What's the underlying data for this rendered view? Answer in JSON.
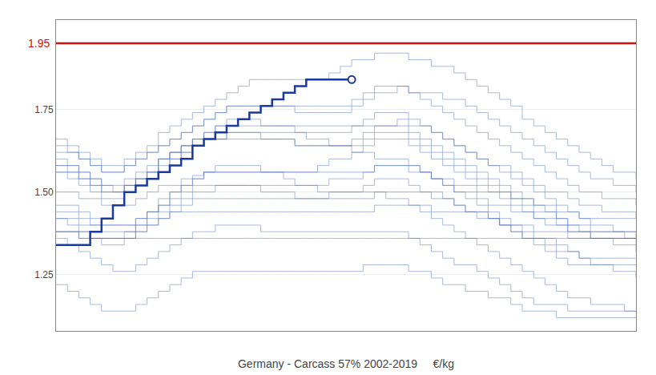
{
  "chart_data": {
    "type": "line",
    "title": "Germany - Carcass 57% 2002-2019     €/kg",
    "line_style": "step",
    "grid": true,
    "tick_labels": "y",
    "x": [
      0,
      1,
      2,
      3,
      4,
      5,
      6,
      7,
      8,
      9,
      10,
      11,
      12,
      13,
      14,
      15,
      16,
      17,
      18,
      19,
      20,
      21,
      22,
      23,
      24,
      25,
      26,
      27,
      28,
      29,
      30,
      31,
      32,
      33,
      34,
      35,
      36,
      37,
      38,
      39,
      40,
      41,
      42,
      43,
      44,
      45,
      46,
      47,
      48,
      49,
      50,
      51
    ],
    "xlim": [
      0,
      51
    ],
    "ylim": [
      1.08,
      2.02
    ],
    "yticks": [
      1.25,
      {
        "value": 1.5,
        "label": "1.50"
      },
      1.75
    ],
    "reference_line": {
      "value": 1.95,
      "label": "1.95",
      "color": "#cc1111"
    },
    "series": [
      {
        "color": "#4466bb",
        "values": [
          1.38,
          1.38,
          1.36,
          1.36,
          1.36,
          1.36,
          1.38,
          1.38,
          1.4,
          1.42,
          1.44,
          1.44,
          1.44,
          1.44,
          1.44,
          1.44,
          1.44,
          1.44,
          1.44,
          1.44,
          1.44,
          1.44,
          1.44,
          1.44,
          1.44,
          1.44,
          1.44,
          1.44,
          1.46,
          1.46,
          1.46,
          1.46,
          1.46,
          1.44,
          1.44,
          1.44,
          1.44,
          1.42,
          1.42,
          1.4,
          1.4,
          1.4,
          1.38,
          1.38,
          1.38,
          1.36,
          1.36,
          1.36,
          1.36,
          1.36,
          1.36,
          1.36
        ]
      },
      {
        "color": "#4466bb",
        "values": [
          1.38,
          1.38,
          1.36,
          1.36,
          1.36,
          1.36,
          1.36,
          1.36,
          1.36,
          1.36,
          1.36,
          1.36,
          1.36,
          1.36,
          1.36,
          1.36,
          1.36,
          1.36,
          1.36,
          1.36,
          1.36,
          1.36,
          1.36,
          1.36,
          1.36,
          1.36,
          1.36,
          1.36,
          1.36,
          1.36,
          1.36,
          1.36,
          1.36,
          1.36,
          1.36,
          1.36,
          1.36,
          1.36,
          1.36,
          1.36,
          1.36,
          1.36,
          1.36,
          1.36,
          1.36,
          1.36,
          1.36,
          1.36,
          1.36,
          1.36,
          1.36,
          1.36
        ]
      },
      {
        "color": "#4466bb",
        "values": [
          1.5,
          1.5,
          1.48,
          1.48,
          1.46,
          1.46,
          1.46,
          1.48,
          1.5,
          1.52,
          1.52,
          1.54,
          1.55,
          1.56,
          1.56,
          1.56,
          1.56,
          1.56,
          1.56,
          1.56,
          1.56,
          1.56,
          1.56,
          1.56,
          1.56,
          1.56,
          1.56,
          1.56,
          1.58,
          1.58,
          1.58,
          1.56,
          1.56,
          1.54,
          1.54,
          1.52,
          1.52,
          1.5,
          1.5,
          1.5,
          1.48,
          1.48,
          1.46,
          1.46,
          1.44,
          1.44,
          1.42,
          1.42,
          1.42,
          1.42,
          1.42,
          1.42
        ]
      },
      {
        "color": "#4466bb",
        "values": [
          1.42,
          1.42,
          1.4,
          1.4,
          1.4,
          1.4,
          1.4,
          1.42,
          1.44,
          1.46,
          1.48,
          1.5,
          1.52,
          1.52,
          1.52,
          1.52,
          1.52,
          1.52,
          1.52,
          1.52,
          1.52,
          1.52,
          1.52,
          1.52,
          1.54,
          1.54,
          1.54,
          1.56,
          1.58,
          1.58,
          1.58,
          1.58,
          1.56,
          1.54,
          1.52,
          1.5,
          1.5,
          1.48,
          1.46,
          1.46,
          1.44,
          1.44,
          1.42,
          1.4,
          1.4,
          1.38,
          1.38,
          1.38,
          1.38,
          1.38,
          1.38,
          1.38
        ]
      },
      {
        "color": "#4466bb",
        "values": [
          1.56,
          1.56,
          1.54,
          1.52,
          1.5,
          1.5,
          1.52,
          1.54,
          1.56,
          1.58,
          1.6,
          1.62,
          1.64,
          1.66,
          1.66,
          1.68,
          1.68,
          1.68,
          1.68,
          1.68,
          1.68,
          1.68,
          1.68,
          1.68,
          1.68,
          1.68,
          1.7,
          1.72,
          1.74,
          1.74,
          1.74,
          1.72,
          1.7,
          1.68,
          1.66,
          1.64,
          1.62,
          1.6,
          1.58,
          1.58,
          1.56,
          1.54,
          1.52,
          1.5,
          1.5,
          1.48,
          1.46,
          1.46,
          1.44,
          1.44,
          1.44,
          1.42
        ]
      },
      {
        "color": "#4466bb",
        "values": [
          1.62,
          1.62,
          1.6,
          1.58,
          1.56,
          1.56,
          1.58,
          1.6,
          1.62,
          1.64,
          1.66,
          1.68,
          1.7,
          1.72,
          1.74,
          1.76,
          1.76,
          1.76,
          1.76,
          1.76,
          1.76,
          1.76,
          1.76,
          1.76,
          1.76,
          1.76,
          1.78,
          1.8,
          1.82,
          1.82,
          1.82,
          1.8,
          1.78,
          1.76,
          1.74,
          1.72,
          1.7,
          1.68,
          1.66,
          1.64,
          1.62,
          1.6,
          1.58,
          1.56,
          1.54,
          1.52,
          1.5,
          1.5,
          1.48,
          1.48,
          1.48,
          1.46
        ]
      },
      {
        "color": "#4466bb",
        "values": [
          1.58,
          1.58,
          1.56,
          1.54,
          1.52,
          1.52,
          1.54,
          1.56,
          1.58,
          1.6,
          1.62,
          1.64,
          1.66,
          1.66,
          1.66,
          1.66,
          1.66,
          1.66,
          1.66,
          1.66,
          1.66,
          1.64,
          1.64,
          1.64,
          1.64,
          1.64,
          1.64,
          1.66,
          1.68,
          1.68,
          1.68,
          1.66,
          1.64,
          1.62,
          1.6,
          1.58,
          1.56,
          1.54,
          1.52,
          1.5,
          1.48,
          1.46,
          1.44,
          1.44,
          1.42,
          1.4,
          1.4,
          1.38,
          1.38,
          1.38,
          1.36,
          1.36
        ]
      },
      {
        "color": "#4466bb",
        "values": [
          1.44,
          1.44,
          1.42,
          1.4,
          1.38,
          1.38,
          1.38,
          1.4,
          1.42,
          1.44,
          1.46,
          1.48,
          1.5,
          1.5,
          1.52,
          1.52,
          1.52,
          1.52,
          1.5,
          1.5,
          1.5,
          1.48,
          1.48,
          1.48,
          1.48,
          1.48,
          1.48,
          1.48,
          1.5,
          1.5,
          1.5,
          1.5,
          1.5,
          1.48,
          1.48,
          1.46,
          1.44,
          1.44,
          1.42,
          1.4,
          1.38,
          1.36,
          1.34,
          1.32,
          1.3,
          1.28,
          1.28,
          1.28,
          1.28,
          1.28,
          1.28,
          1.28
        ]
      },
      {
        "color": "#4466bb",
        "values": [
          1.36,
          1.34,
          1.32,
          1.3,
          1.28,
          1.26,
          1.26,
          1.28,
          1.3,
          1.32,
          1.34,
          1.36,
          1.38,
          1.38,
          1.4,
          1.4,
          1.4,
          1.4,
          1.38,
          1.38,
          1.38,
          1.38,
          1.38,
          1.38,
          1.38,
          1.38,
          1.38,
          1.38,
          1.38,
          1.38,
          1.38,
          1.36,
          1.34,
          1.32,
          1.3,
          1.28,
          1.28,
          1.26,
          1.24,
          1.22,
          1.2,
          1.18,
          1.16,
          1.16,
          1.16,
          1.14,
          1.14,
          1.14,
          1.14,
          1.14,
          1.14,
          1.14
        ]
      },
      {
        "color": "#4466bb",
        "values": [
          1.22,
          1.2,
          1.18,
          1.16,
          1.14,
          1.14,
          1.14,
          1.16,
          1.18,
          1.2,
          1.22,
          1.24,
          1.26,
          1.26,
          1.26,
          1.26,
          1.26,
          1.26,
          1.26,
          1.26,
          1.26,
          1.26,
          1.26,
          1.26,
          1.26,
          1.26,
          1.26,
          1.28,
          1.28,
          1.28,
          1.28,
          1.26,
          1.26,
          1.24,
          1.22,
          1.22,
          1.2,
          1.2,
          1.18,
          1.18,
          1.16,
          1.14,
          1.14,
          1.14,
          1.12,
          1.12,
          1.12,
          1.12,
          1.12,
          1.12,
          1.12,
          1.12
        ]
      },
      {
        "color": "#4466bb",
        "values": [
          1.38,
          1.38,
          1.38,
          1.36,
          1.36,
          1.36,
          1.36,
          1.38,
          1.4,
          1.42,
          1.44,
          1.46,
          1.48,
          1.48,
          1.48,
          1.48,
          1.48,
          1.48,
          1.48,
          1.48,
          1.48,
          1.48,
          1.48,
          1.48,
          1.5,
          1.5,
          1.5,
          1.52,
          1.54,
          1.54,
          1.54,
          1.52,
          1.5,
          1.5,
          1.48,
          1.46,
          1.44,
          1.44,
          1.42,
          1.4,
          1.38,
          1.36,
          1.36,
          1.34,
          1.32,
          1.32,
          1.3,
          1.3,
          1.3,
          1.3,
          1.3,
          1.3
        ]
      },
      {
        "color": "#4466bb",
        "values": [
          1.46,
          1.46,
          1.44,
          1.42,
          1.4,
          1.4,
          1.4,
          1.42,
          1.44,
          1.46,
          1.5,
          1.52,
          1.54,
          1.56,
          1.56,
          1.56,
          1.56,
          1.56,
          1.56,
          1.56,
          1.56,
          1.56,
          1.56,
          1.58,
          1.6,
          1.6,
          1.62,
          1.64,
          1.66,
          1.66,
          1.66,
          1.64,
          1.62,
          1.6,
          1.58,
          1.56,
          1.54,
          1.52,
          1.5,
          1.48,
          1.46,
          1.44,
          1.42,
          1.42,
          1.4,
          1.38,
          1.38,
          1.36,
          1.36,
          1.36,
          1.36,
          1.34
        ]
      },
      {
        "color": "#4466bb",
        "values": [
          1.58,
          1.56,
          1.54,
          1.52,
          1.5,
          1.5,
          1.52,
          1.54,
          1.56,
          1.6,
          1.62,
          1.64,
          1.66,
          1.68,
          1.7,
          1.7,
          1.7,
          1.7,
          1.7,
          1.7,
          1.7,
          1.7,
          1.7,
          1.7,
          1.7,
          1.7,
          1.7,
          1.7,
          1.7,
          1.7,
          1.7,
          1.68,
          1.66,
          1.64,
          1.62,
          1.6,
          1.58,
          1.56,
          1.54,
          1.52,
          1.5,
          1.48,
          1.46,
          1.44,
          1.42,
          1.4,
          1.38,
          1.36,
          1.36,
          1.34,
          1.34,
          1.32
        ]
      },
      {
        "color": "#4466bb",
        "values": [
          1.56,
          1.54,
          1.52,
          1.5,
          1.48,
          1.48,
          1.5,
          1.52,
          1.54,
          1.56,
          1.6,
          1.62,
          1.64,
          1.66,
          1.66,
          1.68,
          1.68,
          1.68,
          1.66,
          1.66,
          1.66,
          1.64,
          1.64,
          1.64,
          1.64,
          1.64,
          1.66,
          1.68,
          1.7,
          1.7,
          1.72,
          1.7,
          1.7,
          1.68,
          1.66,
          1.64,
          1.62,
          1.6,
          1.58,
          1.56,
          1.54,
          1.52,
          1.5,
          1.48,
          1.46,
          1.44,
          1.42,
          1.4,
          1.4,
          1.38,
          1.38,
          1.36
        ]
      },
      {
        "color": "#4466bb",
        "values": [
          1.64,
          1.62,
          1.6,
          1.58,
          1.56,
          1.56,
          1.58,
          1.6,
          1.62,
          1.64,
          1.66,
          1.68,
          1.7,
          1.72,
          1.74,
          1.76,
          1.76,
          1.76,
          1.76,
          1.76,
          1.76,
          1.74,
          1.74,
          1.74,
          1.74,
          1.74,
          1.76,
          1.78,
          1.8,
          1.8,
          1.82,
          1.8,
          1.8,
          1.8,
          1.78,
          1.78,
          1.76,
          1.74,
          1.72,
          1.7,
          1.68,
          1.66,
          1.64,
          1.62,
          1.6,
          1.58,
          1.56,
          1.54,
          1.54,
          1.52,
          1.52,
          1.5
        ]
      },
      {
        "color": "#4466bb",
        "values": [
          1.66,
          1.64,
          1.62,
          1.6,
          1.58,
          1.58,
          1.6,
          1.62,
          1.64,
          1.68,
          1.7,
          1.72,
          1.74,
          1.76,
          1.78,
          1.8,
          1.82,
          1.84,
          1.84,
          1.84,
          1.84,
          1.84,
          1.84,
          1.84,
          1.86,
          1.88,
          1.9,
          1.9,
          1.92,
          1.92,
          1.92,
          1.9,
          1.9,
          1.88,
          1.88,
          1.86,
          1.84,
          1.82,
          1.8,
          1.78,
          1.76,
          1.72,
          1.7,
          1.68,
          1.66,
          1.64,
          1.62,
          1.6,
          1.58,
          1.56,
          1.56,
          1.54
        ]
      },
      {
        "color": "#4466bb",
        "values": [
          1.6,
          1.58,
          1.56,
          1.54,
          1.52,
          1.5,
          1.52,
          1.54,
          1.56,
          1.6,
          1.62,
          1.64,
          1.66,
          1.68,
          1.7,
          1.72,
          1.72,
          1.72,
          1.7,
          1.7,
          1.7,
          1.68,
          1.66,
          1.66,
          1.64,
          1.64,
          1.62,
          1.62,
          1.6,
          1.6,
          1.6,
          1.58,
          1.56,
          1.54,
          1.52,
          1.5,
          1.48,
          1.46,
          1.44,
          1.42,
          1.4,
          1.38,
          1.36,
          1.36,
          1.34,
          1.32,
          1.3,
          1.28,
          1.28,
          1.26,
          1.26,
          1.24
        ]
      },
      {
        "color": "#4466bb",
        "values": [
          1.42,
          1.4,
          1.38,
          1.36,
          1.34,
          1.34,
          1.36,
          1.4,
          1.44,
          1.48,
          1.5,
          1.52,
          1.54,
          1.56,
          1.58,
          1.58,
          1.58,
          1.58,
          1.56,
          1.56,
          1.54,
          1.52,
          1.52,
          1.5,
          1.5,
          1.5,
          1.5,
          1.5,
          1.5,
          1.48,
          1.48,
          1.46,
          1.44,
          1.42,
          1.4,
          1.38,
          1.36,
          1.34,
          1.32,
          1.3,
          1.28,
          1.26,
          1.24,
          1.22,
          1.2,
          1.18,
          1.18,
          1.16,
          1.16,
          1.16,
          1.14,
          1.14
        ]
      },
      {
        "color": "#1a3a9e",
        "values": [
          1.34,
          1.34,
          1.34,
          1.38,
          1.42,
          1.46,
          1.5,
          1.52,
          1.54,
          1.56,
          1.58,
          1.6,
          1.64,
          1.66,
          1.68,
          1.7,
          1.72,
          1.74,
          1.76,
          1.78,
          1.8,
          1.82,
          1.84,
          1.84,
          1.84,
          1.84,
          1.84,
          null,
          null,
          null,
          null,
          null,
          null,
          null,
          null,
          null,
          null,
          null,
          null,
          null,
          null,
          null,
          null,
          null,
          null,
          null,
          null,
          null,
          null,
          null,
          null,
          null
        ],
        "endpoint": {
          "x": 26,
          "y": 1.84
        }
      }
    ]
  }
}
